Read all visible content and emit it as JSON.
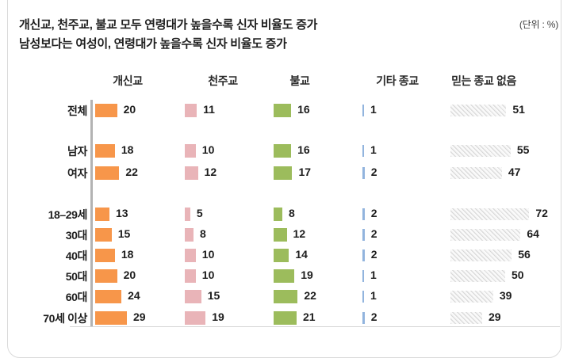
{
  "title": {
    "line1": "개신교, 천주교, 불교 모두 연령대가 높을수록 신자 비율도 증가",
    "line2": "남성보다는 여성이, 연령대가 높을수록 신자 비율도 증가"
  },
  "unit_label": "(단위 : %)",
  "chart_data": {
    "type": "bar",
    "orientation": "horizontal",
    "unit": "%",
    "categories": [
      "전체",
      "남자",
      "여자",
      "18–29세",
      "30대",
      "40대",
      "50대",
      "60대",
      "70세 이상"
    ],
    "category_groups": [
      [
        "전체"
      ],
      [
        "남자",
        "여자"
      ],
      [
        "18–29세",
        "30대",
        "40대",
        "50대",
        "60대",
        "70세 이상"
      ]
    ],
    "series": [
      {
        "name": "개신교",
        "color": "#F7964A",
        "style": "solid",
        "values": [
          20,
          18,
          22,
          13,
          15,
          18,
          20,
          24,
          29
        ]
      },
      {
        "name": "천주교",
        "color": "#E9B4B8",
        "style": "solid",
        "values": [
          11,
          10,
          12,
          5,
          8,
          10,
          10,
          15,
          19
        ]
      },
      {
        "name": "불교",
        "color": "#9CBC5C",
        "style": "solid",
        "values": [
          16,
          16,
          17,
          8,
          12,
          14,
          19,
          22,
          21
        ]
      },
      {
        "name": "기타 종교",
        "color": "#92B4DE",
        "style": "thin-line",
        "values": [
          1,
          1,
          2,
          2,
          2,
          2,
          1,
          1,
          2
        ]
      },
      {
        "name": "믿는 종교 없음",
        "color": "#d7d7d7",
        "style": "hatched",
        "values": [
          51,
          55,
          47,
          72,
          64,
          56,
          50,
          39,
          29
        ]
      }
    ],
    "data_labels": "shown-right-of-bar",
    "legend_position": "column-headers-top",
    "grid": false
  },
  "colors": {
    "accent_orange": "#F7964A",
    "accent_pink": "#E9B4B8",
    "accent_green": "#9CBC5C",
    "accent_blue": "#92B4DE",
    "hatch_gray": "#d7d7d7",
    "axis_gray": "#b3b3b3",
    "border_gray": "#dadada",
    "text_dark": "#1f1f1f"
  }
}
